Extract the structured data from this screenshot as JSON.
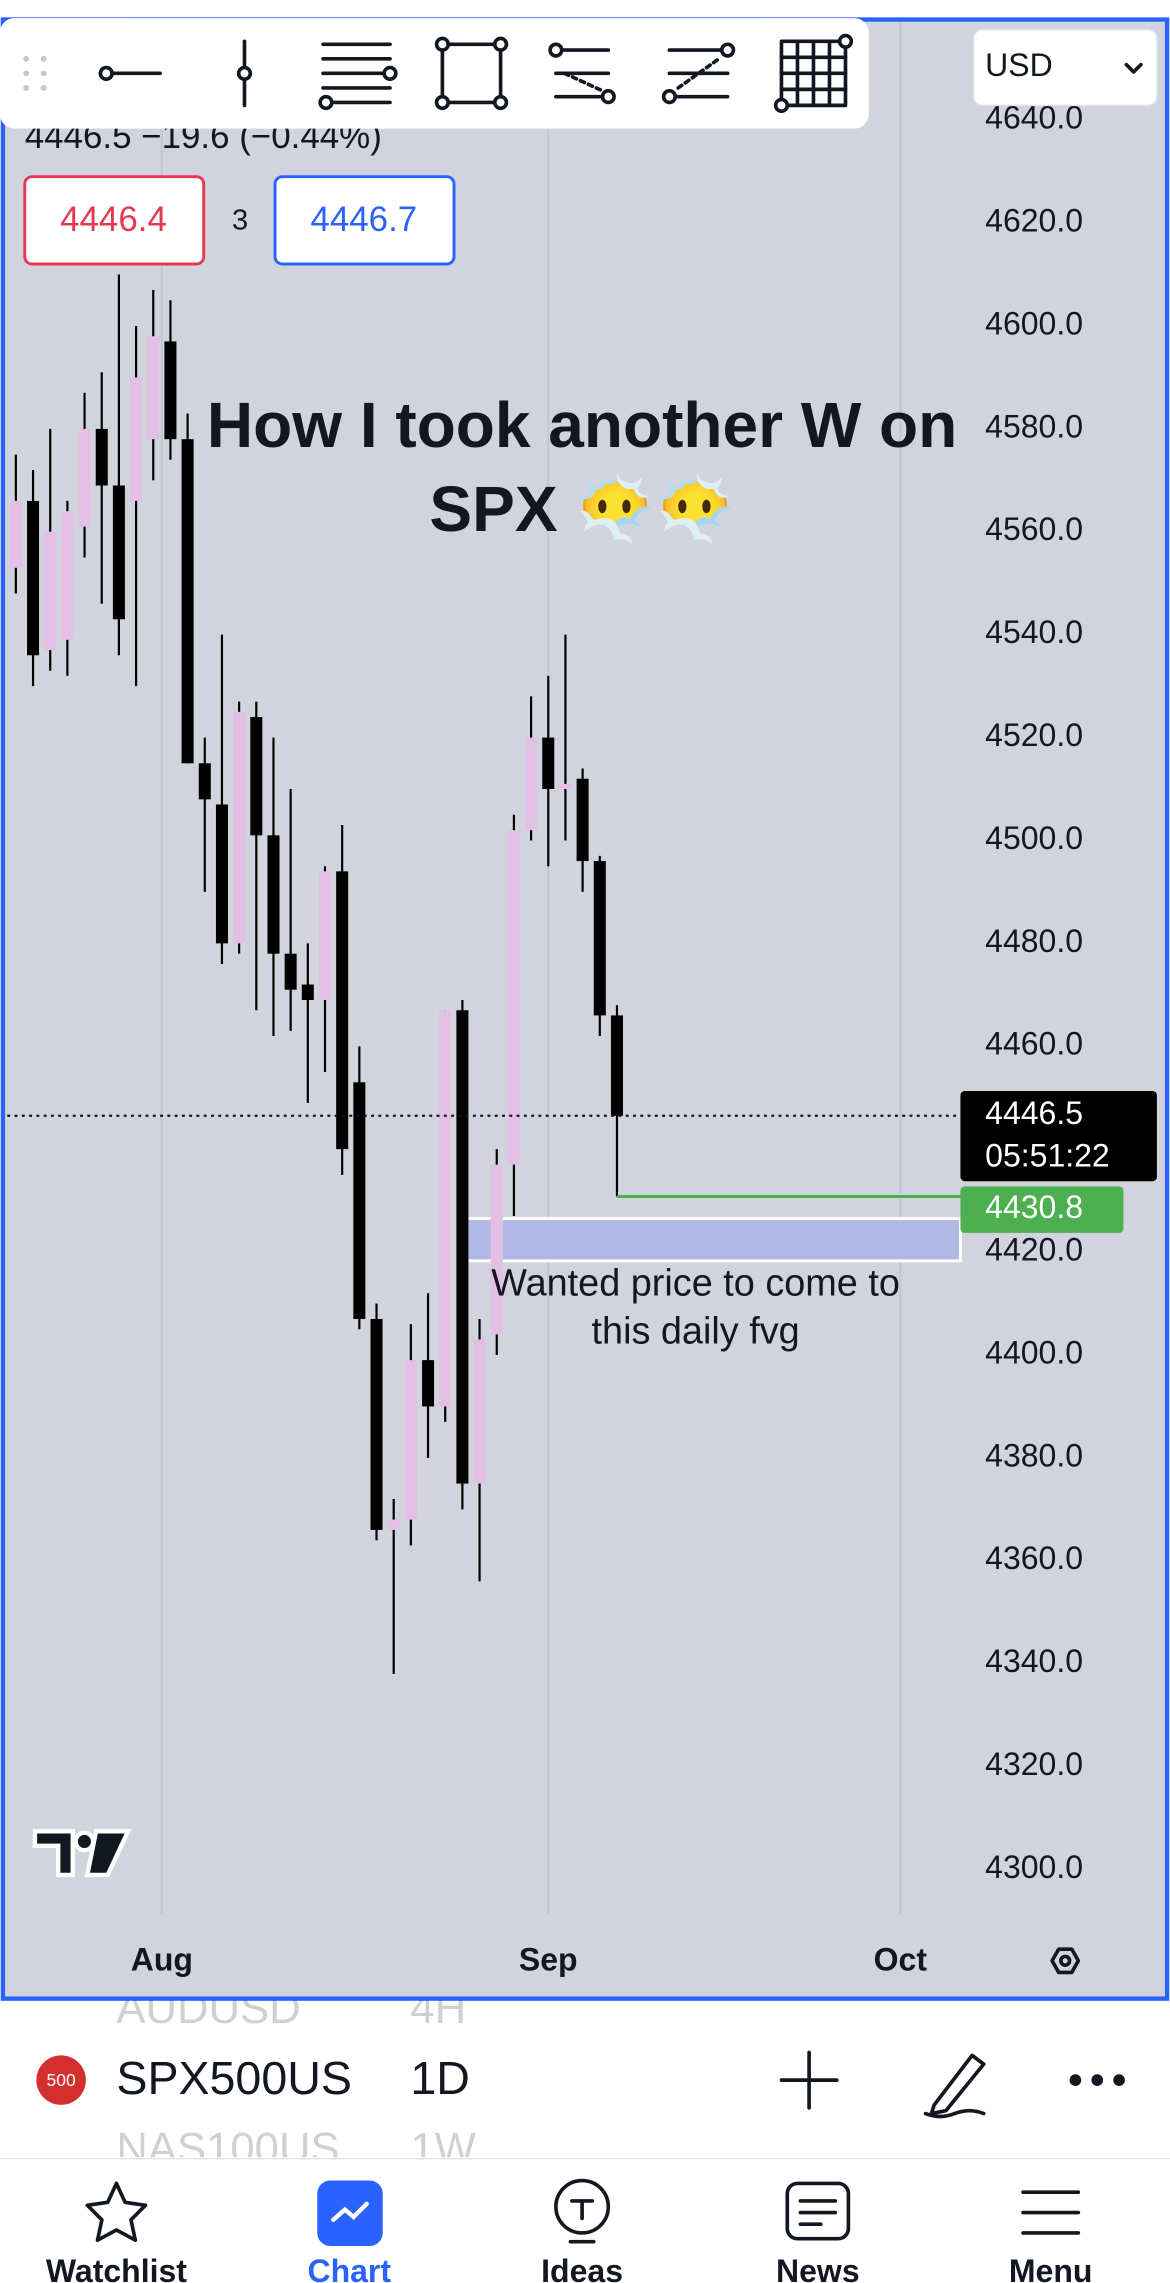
{
  "toolbar": {
    "currency": "USD"
  },
  "header": {
    "quote": "4446.5  −19.6 (−0.44%)",
    "bid": "4446.4",
    "spread": "3",
    "ask": "4446.7"
  },
  "chart_data": {
    "type": "candlestick",
    "title": [
      "How I took another W on",
      "SPX 😶‍🌫️😶‍🌫️"
    ],
    "x": [
      0,
      1,
      2,
      3,
      4,
      5,
      6,
      7,
      8,
      9,
      10,
      11,
      12,
      13,
      14,
      15,
      16,
      17,
      18,
      19,
      20,
      21,
      22,
      23,
      24,
      25,
      26,
      27,
      28,
      29,
      30,
      31,
      32,
      33,
      34,
      35
    ],
    "open": [
      4553,
      4566,
      4537,
      4539,
      4561,
      4580,
      4569,
      4566,
      4578,
      4597,
      4578,
      4515,
      4507,
      4480,
      4524,
      4501,
      4478,
      4472,
      4469,
      4494,
      4453,
      4407,
      4366,
      4368,
      4399,
      4390,
      4467,
      4375,
      4404,
      4437,
      4502,
      4520,
      4510,
      4512,
      4496,
      4466
    ],
    "high": [
      4575,
      4572,
      4580,
      4566,
      4587,
      4591,
      4610,
      4600,
      4607,
      4605,
      4583,
      4520,
      4540,
      4527,
      4527,
      4520,
      4510,
      4480,
      4495,
      4503,
      4460,
      4410,
      4372,
      4406,
      4412,
      4467,
      4469,
      4407,
      4440,
      4505,
      4528,
      4532,
      4540,
      4514,
      4497,
      4468
    ],
    "low": [
      4548,
      4530,
      4533,
      4532,
      4555,
      4546,
      4536,
      4530,
      4570,
      4574,
      4515,
      4490,
      4476,
      4478,
      4467,
      4462,
      4463,
      4449,
      4455,
      4435,
      4405,
      4364,
      4338,
      4363,
      4380,
      4387,
      4370,
      4356,
      4400,
      4427,
      4500,
      4495,
      4500,
      4490,
      4462,
      4430.8
    ],
    "close": [
      4566,
      4536,
      4560,
      4564,
      4580,
      4569,
      4543,
      4590,
      4598,
      4578,
      4515,
      4508,
      4480,
      4525,
      4501,
      4478,
      4471,
      4469,
      4494,
      4440,
      4407,
      4366,
      4368,
      4399,
      4390,
      4467,
      4375,
      4403,
      4437,
      4502,
      4520,
      4510,
      4511,
      4496,
      4466,
      4446.5
    ],
    "up_color": "#e3bfe6",
    "down_color": "#000000",
    "xlim": [
      -0.5,
      55
    ],
    "xticks": [
      {
        "value": 8.5,
        "label": "Aug"
      },
      {
        "value": 31,
        "label": "Sep"
      },
      {
        "value": 51.5,
        "label": "Oct"
      }
    ],
    "grid": "x",
    "ylim": [
      4291.3,
      4659.0
    ],
    "yticks": [
      {
        "value": 4300,
        "label": "4300.0"
      },
      {
        "value": 4320,
        "label": "4320.0"
      },
      {
        "value": 4340,
        "label": "4340.0"
      },
      {
        "value": 4360,
        "label": "4360.0"
      },
      {
        "value": 4380,
        "label": "4380.0"
      },
      {
        "value": 4400,
        "label": "4400.0"
      },
      {
        "value": 4420,
        "label": "4420.0"
      },
      {
        "value": 4440,
        "label": "4440.0"
      },
      {
        "value": 4460,
        "label": "4460.0"
      },
      {
        "value": 4480,
        "label": "4480.0"
      },
      {
        "value": 4500,
        "label": "4500.0"
      },
      {
        "value": 4520,
        "label": "4520.0"
      },
      {
        "value": 4540,
        "label": "4540.0"
      },
      {
        "value": 4560,
        "label": "4560.0"
      },
      {
        "value": 4580,
        "label": "4580.0"
      },
      {
        "value": 4600,
        "label": "4600.0"
      },
      {
        "value": 4620,
        "label": "4620.0"
      },
      {
        "value": 4640,
        "label": "4640.0"
      }
    ],
    "last_price": 4446.5,
    "countdown": "05:51:22",
    "level": {
      "value": 4430.8,
      "x_start": 35,
      "color": "#4caf50"
    },
    "zone": {
      "x_start": 26,
      "top": 4426.5,
      "bottom": 4418.3,
      "color": "#b0b9e6"
    },
    "annotation": [
      "Wanted price to come to",
      "this daily fvg"
    ]
  },
  "symbols": [
    {
      "name": "AUDUSD",
      "interval": "4H"
    },
    {
      "badge": "500",
      "name": "SPX500US",
      "interval": "1D"
    },
    {
      "name": "NAS100US",
      "interval": "1W"
    }
  ],
  "nav": [
    "Watchlist",
    "Chart",
    "Ideas",
    "News",
    "Menu"
  ]
}
